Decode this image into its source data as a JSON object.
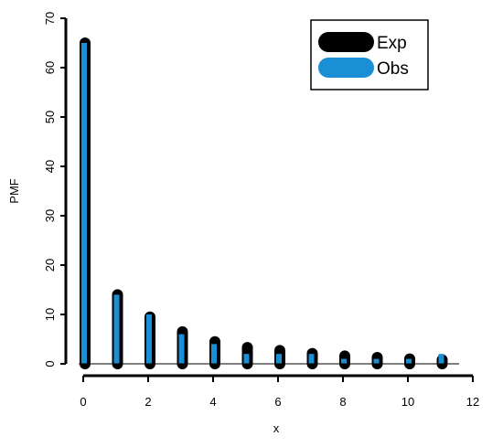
{
  "chart_data": {
    "type": "bar",
    "xlabel": "x",
    "ylabel": "PMF",
    "xlim": [
      0,
      12
    ],
    "ylim": [
      0,
      70
    ],
    "xticks": [
      0,
      2,
      4,
      6,
      8,
      10,
      12
    ],
    "yticks": [
      0,
      10,
      20,
      30,
      40,
      50,
      60,
      70
    ],
    "x": [
      0,
      1,
      2,
      3,
      4,
      5,
      6,
      7,
      8,
      9,
      10,
      11
    ],
    "series": [
      {
        "name": "Exp",
        "color": "#000000",
        "values": [
          65.0,
          14.0,
          9.5,
          6.5,
          4.5,
          3.3,
          2.7,
          2.1,
          1.6,
          1.3,
          1.0,
          0.8
        ]
      },
      {
        "name": "Obs",
        "color": "#1a8fd6",
        "values": [
          65.0,
          14.0,
          10.0,
          6.0,
          4.0,
          2.0,
          2.0,
          2.0,
          1.0,
          1.0,
          1.0,
          2.0
        ]
      }
    ],
    "legend": {
      "position": "top-right",
      "entries": [
        "Exp",
        "Obs"
      ]
    },
    "grid": false
  }
}
